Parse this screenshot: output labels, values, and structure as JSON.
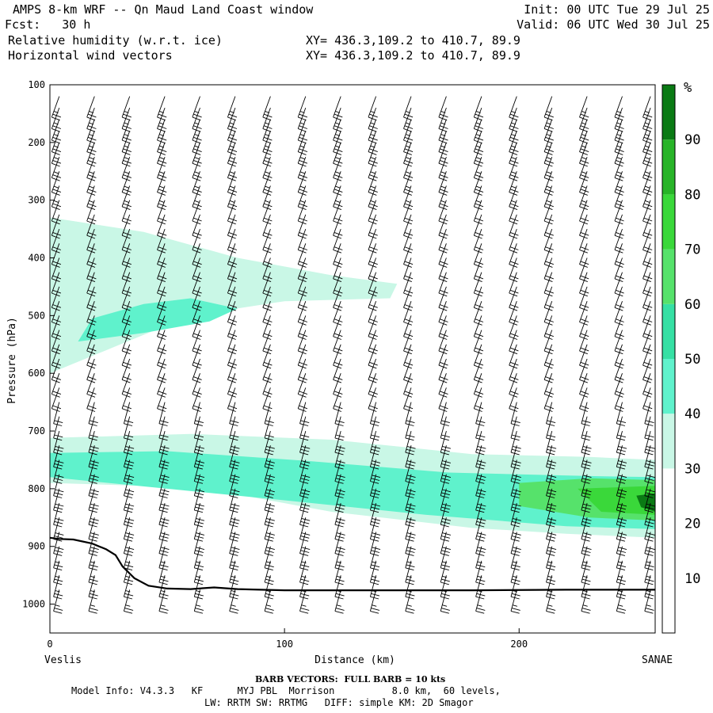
{
  "header": {
    "title": "AMPS 8-km WRF -- Qn Maud Land Coast window",
    "fcst": "Fcst:   30 h",
    "field1": "Relative humidity (w.r.t. ice)",
    "field2": "Horizontal wind vectors",
    "xy1": "XY= 436.3,109.2 to 410.7, 89.9",
    "xy2": "XY= 436.3,109.2 to 410.7, 89.9",
    "init": "Init: 00 UTC Tue 29 Jul 25",
    "valid": "Valid: 06 UTC Wed 30 Jul 25"
  },
  "footer": {
    "barb_note": "BARB VECTORS:  FULL BARB = 10 kts",
    "model_line1": "Model Info: V4.3.3   KF      MYJ PBL  Morrison          8.0 km,  60 levels,",
    "model_line2": "LW: RRTM SW: RRTMG   DIFF: simple KM: 2D Smagor"
  },
  "chart_data": {
    "type": "cross-section",
    "ylabel": "Pressure (hPa)",
    "xlabel": "Distance (km)",
    "x_start_label": "Veslis",
    "x_end_label": "SANAE",
    "x_ticks": [
      0,
      100,
      200
    ],
    "y_ticks": [
      100,
      200,
      300,
      400,
      500,
      600,
      700,
      800,
      900,
      1000
    ],
    "xlim": [
      0,
      258
    ],
    "ylim": [
      100,
      1050
    ],
    "y_scale": "linear, inverted (pressure increases downward)",
    "colorbar": {
      "unit": "%",
      "levels": [
        10,
        20,
        30,
        40,
        50,
        60,
        70,
        80,
        90
      ],
      "colors": [
        "#ffffff",
        "#ffffff",
        "#ffffff",
        "#c9f7e6",
        "#5ff2cc",
        "#36e0a4",
        "#56e26b",
        "#3ad83a",
        "#28b428",
        "#0a7a14"
      ]
    },
    "rh_regions": [
      {
        "level": 30,
        "color": "#c9f7e6",
        "points": [
          [
            0,
            330
          ],
          [
            40,
            355
          ],
          [
            80,
            400
          ],
          [
            120,
            430
          ],
          [
            148,
            445
          ],
          [
            145,
            470
          ],
          [
            100,
            475
          ],
          [
            60,
            500
          ],
          [
            30,
            550
          ],
          [
            0,
            600
          ]
        ]
      },
      {
        "level": 40,
        "color": "#5ff2cc",
        "points": [
          [
            18,
            505
          ],
          [
            40,
            480
          ],
          [
            60,
            470
          ],
          [
            80,
            488
          ],
          [
            68,
            510
          ],
          [
            40,
            530
          ],
          [
            12,
            545
          ]
        ]
      },
      {
        "level": 30,
        "color": "#c9f7e6",
        "points": [
          [
            0,
            712
          ],
          [
            60,
            705
          ],
          [
            120,
            715
          ],
          [
            180,
            740
          ],
          [
            230,
            745
          ],
          [
            258,
            750
          ],
          [
            258,
            885
          ],
          [
            220,
            878
          ],
          [
            180,
            868
          ],
          [
            120,
            840
          ],
          [
            80,
            810
          ],
          [
            40,
            795
          ],
          [
            0,
            790
          ]
        ]
      },
      {
        "level": 40,
        "color": "#5ff2cc",
        "points": [
          [
            0,
            738
          ],
          [
            50,
            735
          ],
          [
            110,
            752
          ],
          [
            170,
            772
          ],
          [
            230,
            778
          ],
          [
            258,
            780
          ],
          [
            258,
            870
          ],
          [
            220,
            865
          ],
          [
            160,
            845
          ],
          [
            100,
            820
          ],
          [
            50,
            800
          ],
          [
            0,
            780
          ]
        ]
      },
      {
        "level": 60,
        "color": "#56e26b",
        "points": [
          [
            200,
            790
          ],
          [
            230,
            782
          ],
          [
            258,
            785
          ],
          [
            258,
            855
          ],
          [
            230,
            850
          ],
          [
            200,
            830
          ]
        ]
      },
      {
        "level": 70,
        "color": "#3ad83a",
        "points": [
          [
            225,
            800
          ],
          [
            258,
            795
          ],
          [
            258,
            845
          ],
          [
            235,
            840
          ]
        ]
      },
      {
        "level": 90,
        "color": "#0a7a14",
        "points": [
          [
            250,
            812
          ],
          [
            258,
            808
          ],
          [
            258,
            840
          ],
          [
            252,
            832
          ]
        ]
      }
    ],
    "terrain": {
      "surface_pressure": [
        [
          0,
          885
        ],
        [
          4,
          887
        ],
        [
          10,
          888
        ],
        [
          18,
          895
        ],
        [
          24,
          905
        ],
        [
          28,
          915
        ],
        [
          31,
          935
        ],
        [
          36,
          955
        ],
        [
          42,
          968
        ],
        [
          50,
          973
        ],
        [
          60,
          974
        ],
        [
          70,
          971
        ],
        [
          80,
          974
        ],
        [
          100,
          976
        ],
        [
          140,
          976
        ],
        [
          180,
          976
        ],
        [
          220,
          975
        ],
        [
          258,
          975
        ]
      ]
    },
    "wind_barbs": {
      "columns_km": [
        4,
        19,
        34,
        49,
        64,
        79,
        94,
        109,
        124,
        139,
        154,
        169,
        184,
        199,
        214,
        229,
        244,
        256
      ],
      "levels_hpa": [
        120,
        140,
        160,
        180,
        200,
        225,
        250,
        275,
        300,
        325,
        350,
        375,
        400,
        425,
        450,
        475,
        500,
        525,
        550,
        575,
        600,
        625,
        650,
        675,
        700,
        725,
        750,
        775,
        800,
        825,
        850,
        875,
        900,
        925,
        950,
        975,
        1000
      ],
      "speed_kts_by_layer": [
        {
          "from_hpa": 100,
          "to_hpa": 300,
          "speed": 25
        },
        {
          "from_hpa": 300,
          "to_hpa": 600,
          "speed": 20
        },
        {
          "from_hpa": 600,
          "to_hpa": 700,
          "speed": 20
        },
        {
          "from_hpa": 700,
          "to_hpa": 900,
          "speed": 30
        },
        {
          "from_hpa": 900,
          "to_hpa": 1000,
          "speed": 25
        }
      ]
    }
  }
}
